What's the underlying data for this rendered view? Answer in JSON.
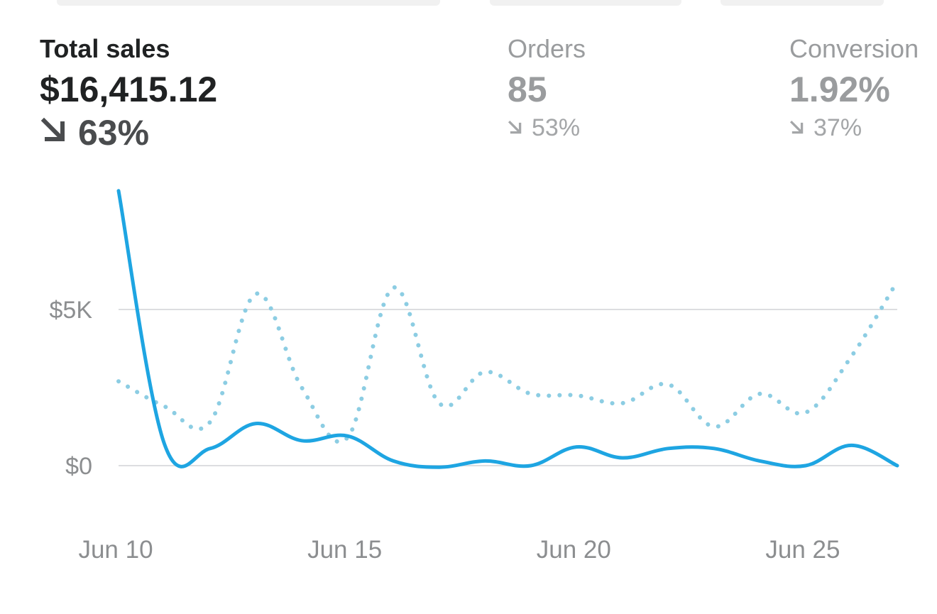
{
  "metrics": {
    "total_sales": {
      "label": "Total sales",
      "value": "$16,415.12",
      "delta": "63%",
      "trend_icon": "arrow-down-right-icon"
    },
    "orders": {
      "label": "Orders",
      "value": "85",
      "delta": "53%",
      "trend_icon": "arrow-down-right-icon"
    },
    "conversion": {
      "label": "Conversion",
      "value": "1.92%",
      "delta": "37%",
      "trend_icon": "arrow-down-right-icon"
    }
  },
  "colors": {
    "current": "#1ea5e2",
    "previous": "#8ccde3",
    "grid": "#dcdde0",
    "text": "#202223",
    "muted": "#9a9c9e"
  },
  "chart_data": {
    "type": "line",
    "x": [
      "Jun 10",
      "Jun 11",
      "Jun 12",
      "Jun 13",
      "Jun 14",
      "Jun 15",
      "Jun 16",
      "Jun 17",
      "Jun 18",
      "Jun 19",
      "Jun 20",
      "Jun 21",
      "Jun 22",
      "Jun 23",
      "Jun 24",
      "Jun 25",
      "Jun 26",
      "Jun 27"
    ],
    "x_tick_labels": [
      "Jun 10",
      "Jun 15",
      "Jun 20",
      "Jun 25"
    ],
    "y_tick_labels": [
      "$0",
      "$5K"
    ],
    "y_ticks": [
      0,
      5000
    ],
    "ylim": [
      -1000,
      9000
    ],
    "grid": true,
    "series": [
      {
        "style": "solid",
        "values": [
          8800,
          700,
          550,
          1350,
          800,
          950,
          150,
          -50,
          150,
          0,
          600,
          250,
          550,
          550,
          150,
          0,
          650,
          0
        ]
      },
      {
        "style": "dotted",
        "values": [
          2700,
          1900,
          1400,
          5500,
          2500,
          900,
          5700,
          2000,
          3000,
          2300,
          2250,
          2000,
          2600,
          1250,
          2300,
          1700,
          3500,
          5900
        ]
      }
    ]
  }
}
